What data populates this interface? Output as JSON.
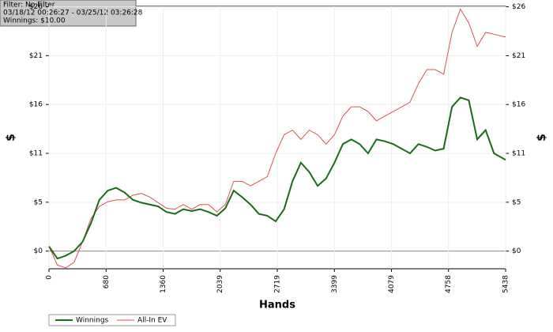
{
  "chart_data": {
    "type": "line",
    "info": [
      "Filter: No Filter",
      "03/18/12 00:26:27 - 03/25/12 03:26:28",
      "Winnings: $10.00"
    ],
    "xlabel": "Hands",
    "ylabel": "$",
    "y2label": "$",
    "x": [
      0,
      100,
      200,
      300,
      400,
      500,
      600,
      700,
      800,
      900,
      1000,
      1100,
      1200,
      1300,
      1400,
      1500,
      1600,
      1700,
      1800,
      1900,
      2000,
      2100,
      2200,
      2300,
      2400,
      2500,
      2600,
      2700,
      2800,
      2900,
      3000,
      3100,
      3200,
      3300,
      3400,
      3500,
      3600,
      3700,
      3800,
      3900,
      4000,
      4100,
      4200,
      4300,
      4400,
      4500,
      4600,
      4700,
      4800,
      4900,
      5000,
      5100,
      5200,
      5300,
      5438
    ],
    "series": [
      {
        "name": "Winnings",
        "color": "#1a6b1a",
        "values": [
          0.5,
          -0.8,
          -0.5,
          0,
          1,
          3,
          5.5,
          6.5,
          6.8,
          6.3,
          5.5,
          5.2,
          5,
          4.8,
          4.2,
          4,
          4.5,
          4.3,
          4.5,
          4.2,
          3.8,
          4.6,
          6.5,
          5.8,
          5,
          4,
          3.8,
          3.2,
          4.5,
          7.5,
          9.5,
          8.5,
          7,
          7.8,
          9.5,
          11.5,
          12,
          11.5,
          10.5,
          12,
          11.8,
          11.5,
          11,
          10.5,
          11.5,
          11.2,
          10.8,
          11,
          15.5,
          16.5,
          16.2,
          12,
          13,
          10.5,
          9.8
        ]
      },
      {
        "name": "All-In EV",
        "color": "#d9534f",
        "values": [
          0.5,
          -1.5,
          -1.8,
          -1.2,
          1,
          3.5,
          4.8,
          5.3,
          5.5,
          5.5,
          6,
          6.2,
          5.8,
          5.2,
          4.6,
          4.5,
          5,
          4.5,
          5,
          5,
          4.2,
          5,
          7.5,
          7.5,
          7,
          7.5,
          8,
          10.5,
          12.5,
          13,
          12,
          13,
          12.5,
          11.5,
          12.5,
          14.5,
          15.5,
          15.5,
          15,
          14,
          14.5,
          15,
          15.5,
          16,
          18,
          19.5,
          19.5,
          19,
          23.5,
          26,
          24.5,
          22,
          23.5,
          23.3,
          23
        ]
      }
    ],
    "xlim": [
      0,
      5438
    ],
    "xticks": [
      0,
      680,
      1360,
      2039,
      2719,
      3399,
      4079,
      4758,
      5438
    ],
    "ylim": [
      -1.9,
      26.3
    ],
    "yticks": [
      {
        "value": 0,
        "label": "$0"
      },
      {
        "value": 5.25,
        "label": "$5"
      },
      {
        "value": 10.5,
        "label": "$11"
      },
      {
        "value": 15.75,
        "label": "$16"
      },
      {
        "value": 21,
        "label": "$21"
      },
      {
        "value": 26.25,
        "label": "$26"
      }
    ],
    "y2lim": [
      -1.9,
      26.3
    ],
    "y2ticks": [
      {
        "value": 0,
        "label": "$0"
      },
      {
        "value": 5.25,
        "label": "$5"
      },
      {
        "value": 10.5,
        "label": "$11"
      },
      {
        "value": 15.75,
        "label": "$16"
      },
      {
        "value": 21,
        "label": "$21"
      },
      {
        "value": 26.25,
        "label": "$26"
      }
    ],
    "grid": true
  }
}
